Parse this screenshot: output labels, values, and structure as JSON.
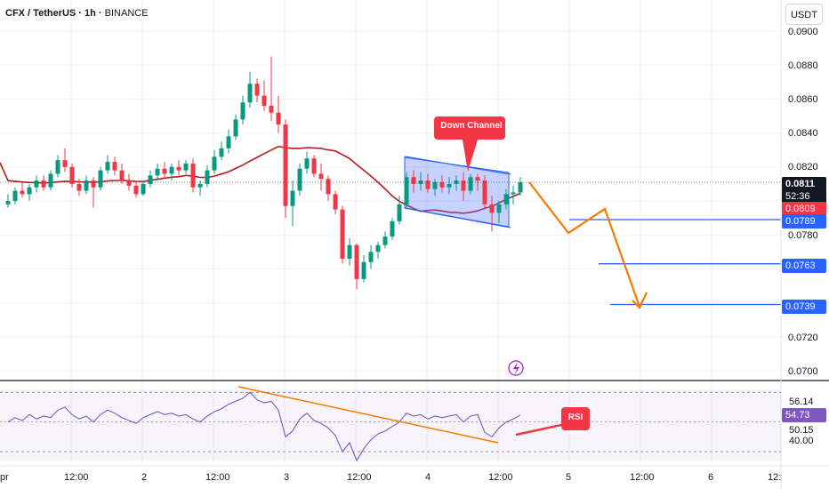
{
  "header": {
    "symbol": "CFX / TetherUS · 1h ·",
    "exchange": "BINANCE"
  },
  "unit_button": "USDT",
  "price_axis": {
    "ticks": [
      "0.0900",
      "0.0880",
      "0.0860",
      "0.0840",
      "0.0820",
      "0.0780",
      "0.0720",
      "0.0700"
    ],
    "current_price": "0.0811",
    "countdown": "52:36",
    "ma_value": "0.0809",
    "levels": [
      "0.0789",
      "0.0763",
      "0.0739"
    ]
  },
  "rsi_axis": {
    "ticks": [
      "56.14",
      "50.15",
      "40.00"
    ],
    "current": "54.73"
  },
  "time_axis": [
    "pr",
    "12:00",
    "2",
    "12:00",
    "3",
    "12:00",
    "4",
    "12:00",
    "5",
    "12:00",
    "6",
    "12:"
  ],
  "annotations": {
    "down_channel": "Down Channel",
    "rsi": "RSI"
  },
  "colors": {
    "up": "#089981",
    "down": "#f23645",
    "ma": "#b71c1c",
    "level": "#2962ff",
    "projection": "#f57c00",
    "callout": "#f23645",
    "channel_fill": "#5b7cfa",
    "rsi_line": "#7e57c2"
  },
  "chart_data": {
    "type": "candlestick",
    "ylim": [
      0.069,
      0.091
    ],
    "levels": [
      0.0789,
      0.0763,
      0.0739
    ],
    "candles": [
      [
        0.0798,
        0.0804,
        0.0796,
        0.08
      ],
      [
        0.08,
        0.0808,
        0.0798,
        0.0806
      ],
      [
        0.0806,
        0.0811,
        0.0802,
        0.0804
      ],
      [
        0.0804,
        0.081,
        0.08,
        0.0808
      ],
      [
        0.0808,
        0.0815,
        0.0805,
        0.0812
      ],
      [
        0.0812,
        0.0815,
        0.0806,
        0.0808
      ],
      [
        0.0808,
        0.0818,
        0.0806,
        0.0816
      ],
      [
        0.0816,
        0.0827,
        0.0814,
        0.0824
      ],
      [
        0.0824,
        0.0831,
        0.0817,
        0.082
      ],
      [
        0.082,
        0.0822,
        0.0808,
        0.081
      ],
      [
        0.081,
        0.0813,
        0.0803,
        0.0806
      ],
      [
        0.0806,
        0.0815,
        0.0804,
        0.0812
      ],
      [
        0.0812,
        0.0814,
        0.0796,
        0.0808
      ],
      [
        0.0808,
        0.082,
        0.0806,
        0.0818
      ],
      [
        0.0818,
        0.0827,
        0.0816,
        0.0823
      ],
      [
        0.0823,
        0.0826,
        0.0815,
        0.0818
      ],
      [
        0.0818,
        0.0822,
        0.081,
        0.0812
      ],
      [
        0.0812,
        0.0816,
        0.0806,
        0.0809
      ],
      [
        0.0809,
        0.0812,
        0.0802,
        0.0804
      ],
      [
        0.0804,
        0.0812,
        0.0803,
        0.081
      ],
      [
        0.081,
        0.0818,
        0.0808,
        0.0815
      ],
      [
        0.0815,
        0.0822,
        0.0812,
        0.0819
      ],
      [
        0.0819,
        0.0823,
        0.0813,
        0.0816
      ],
      [
        0.0816,
        0.0822,
        0.0812,
        0.082
      ],
      [
        0.082,
        0.0824,
        0.0815,
        0.0818
      ],
      [
        0.0818,
        0.0824,
        0.0816,
        0.0822
      ],
      [
        0.0822,
        0.0825,
        0.0805,
        0.0808
      ],
      [
        0.0808,
        0.0812,
        0.0803,
        0.081
      ],
      [
        0.081,
        0.0821,
        0.0808,
        0.0818
      ],
      [
        0.0818,
        0.083,
        0.0816,
        0.0826
      ],
      [
        0.0826,
        0.0835,
        0.0824,
        0.0831
      ],
      [
        0.0831,
        0.0842,
        0.0828,
        0.0838
      ],
      [
        0.0838,
        0.0851,
        0.0836,
        0.0848
      ],
      [
        0.0848,
        0.0862,
        0.0845,
        0.0858
      ],
      [
        0.0858,
        0.0876,
        0.0855,
        0.0869
      ],
      [
        0.0869,
        0.0872,
        0.0858,
        0.0862
      ],
      [
        0.0862,
        0.0871,
        0.0853,
        0.0856
      ],
      [
        0.0856,
        0.0885,
        0.0847,
        0.0852
      ],
      [
        0.0852,
        0.0862,
        0.084,
        0.0845
      ],
      [
        0.0845,
        0.0848,
        0.079,
        0.0797
      ],
      [
        0.0797,
        0.0812,
        0.0785,
        0.0806
      ],
      [
        0.0806,
        0.0822,
        0.0803,
        0.0819
      ],
      [
        0.0819,
        0.0829,
        0.0816,
        0.0825
      ],
      [
        0.0825,
        0.0827,
        0.0814,
        0.0816
      ],
      [
        0.0816,
        0.0822,
        0.0806,
        0.0813
      ],
      [
        0.0813,
        0.0815,
        0.08,
        0.0804
      ],
      [
        0.0804,
        0.0806,
        0.0792,
        0.0795
      ],
      [
        0.0795,
        0.0797,
        0.0763,
        0.0766
      ],
      [
        0.0766,
        0.0778,
        0.0762,
        0.0774
      ],
      [
        0.0774,
        0.0775,
        0.0748,
        0.0754
      ],
      [
        0.0754,
        0.0768,
        0.0752,
        0.0764
      ],
      [
        0.0764,
        0.0774,
        0.076,
        0.077
      ],
      [
        0.077,
        0.0776,
        0.0766,
        0.0774
      ],
      [
        0.0774,
        0.0782,
        0.0772,
        0.0779
      ],
      [
        0.0779,
        0.079,
        0.0777,
        0.0788
      ],
      [
        0.0788,
        0.0803,
        0.0786,
        0.0798
      ],
      [
        0.0798,
        0.0817,
        0.0796,
        0.0814
      ],
      [
        0.0814,
        0.0818,
        0.0805,
        0.081
      ],
      [
        0.081,
        0.0817,
        0.0806,
        0.0812
      ],
      [
        0.0812,
        0.0816,
        0.0805,
        0.0807
      ],
      [
        0.0807,
        0.0813,
        0.0803,
        0.0811
      ],
      [
        0.0811,
        0.0815,
        0.0805,
        0.0808
      ],
      [
        0.0808,
        0.0814,
        0.0804,
        0.081
      ],
      [
        0.081,
        0.0815,
        0.0806,
        0.0812
      ],
      [
        0.0812,
        0.0817,
        0.08,
        0.0806
      ],
      [
        0.0806,
        0.0816,
        0.0804,
        0.0814
      ],
      [
        0.0814,
        0.0816,
        0.0806,
        0.0812
      ],
      [
        0.0812,
        0.0815,
        0.0795,
        0.0798
      ],
      [
        0.0798,
        0.0803,
        0.0782,
        0.0793
      ],
      [
        0.0793,
        0.08,
        0.0787,
        0.0798
      ],
      [
        0.0798,
        0.0807,
        0.0795,
        0.0804
      ],
      [
        0.0804,
        0.0809,
        0.0798,
        0.0805
      ],
      [
        0.0805,
        0.0814,
        0.0803,
        0.0811
      ]
    ],
    "rsi": [
      50,
      53,
      51,
      55,
      52,
      54,
      53,
      58,
      60,
      55,
      52,
      54,
      50,
      55,
      58,
      56,
      53,
      51,
      49,
      53,
      55,
      57,
      55,
      56,
      54,
      55,
      52,
      50,
      54,
      57,
      59,
      62,
      64,
      66,
      70,
      65,
      63,
      64,
      58,
      40,
      44,
      52,
      56,
      51,
      49,
      46,
      41,
      30,
      36,
      24,
      32,
      38,
      42,
      44,
      47,
      50,
      56,
      54,
      55,
      52,
      54,
      53,
      54,
      55,
      50,
      54,
      55,
      43,
      40,
      46,
      50,
      52,
      54.7
    ],
    "rsi_ylim": [
      24,
      72
    ],
    "rsi_levels": [
      70,
      50,
      30
    ]
  }
}
